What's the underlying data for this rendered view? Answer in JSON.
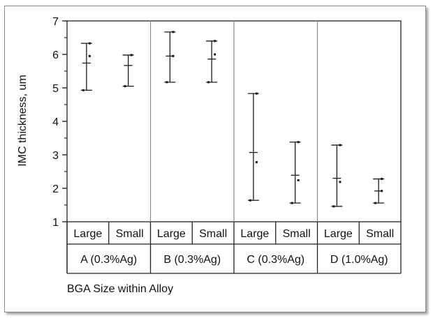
{
  "chart_data": {
    "type": "interval",
    "ylabel": "IMC thickness, um",
    "xlabel": "BGA Size within Alloy",
    "ylim": [
      1,
      7
    ],
    "yticks": [
      1,
      2,
      3,
      4,
      5,
      6,
      7
    ],
    "groups": [
      {
        "name": "A (0.3%Ag)",
        "items": [
          {
            "label": "Large",
            "low": 4.93,
            "high": 6.33,
            "mean": 5.74,
            "median": 5.95
          },
          {
            "label": "Small",
            "low": 5.05,
            "high": 5.98,
            "mean": 5.67,
            "median": 5.98
          }
        ]
      },
      {
        "name": "B (0.3%Ag)",
        "items": [
          {
            "label": "Large",
            "low": 5.17,
            "high": 6.67,
            "mean": 5.95,
            "median": 5.95
          },
          {
            "label": "Small",
            "low": 5.17,
            "high": 6.4,
            "mean": 5.86,
            "median": 6.0
          }
        ]
      },
      {
        "name": "C (0.3%Ag)",
        "items": [
          {
            "label": "Large",
            "low": 1.64,
            "high": 4.83,
            "mean": 3.07,
            "median": 2.78
          },
          {
            "label": "Small",
            "low": 1.56,
            "high": 3.38,
            "mean": 2.39,
            "median": 2.24
          }
        ]
      },
      {
        "name": "D (1.0%Ag)",
        "items": [
          {
            "label": "Large",
            "low": 1.46,
            "high": 3.29,
            "mean": 2.3,
            "median": 2.19
          },
          {
            "label": "Small",
            "low": 1.56,
            "high": 2.28,
            "mean": 1.92,
            "median": 1.92
          }
        ]
      }
    ]
  },
  "colors": {
    "line": "#1a1a1a",
    "divider": "#888888",
    "border": "#222222"
  }
}
